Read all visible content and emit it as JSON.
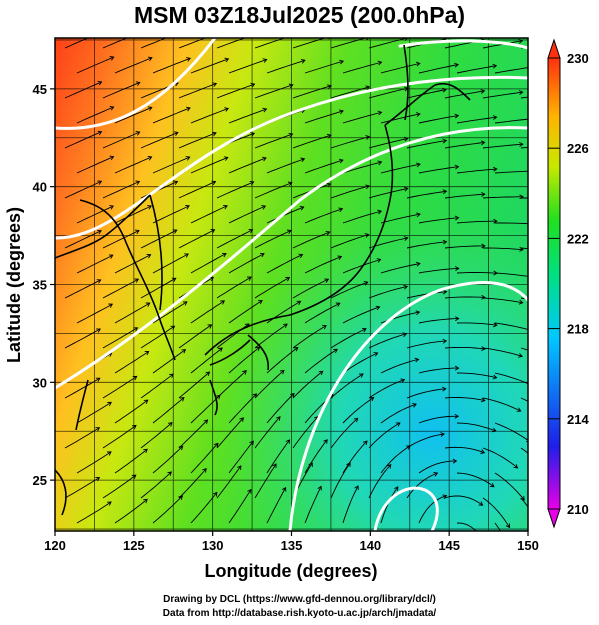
{
  "title": "MSM 03Z18Jul2025 (200.0hPa)",
  "axes": {
    "xlabel": "Longitude (degrees)",
    "ylabel": "Latitude  (degrees)",
    "xticks": [
      "120",
      "125",
      "130",
      "135",
      "140",
      "145",
      "150"
    ],
    "yticks": [
      "25",
      "30",
      "35",
      "40",
      "45"
    ],
    "xlim": [
      120,
      150
    ],
    "ylim": [
      22.4,
      47.6
    ]
  },
  "colorbar": {
    "ticks": [
      "230",
      "226",
      "222",
      "218",
      "214",
      "210"
    ],
    "range": [
      210,
      230
    ],
    "colors": [
      "#e800e8",
      "#1e1ee8",
      "#00c8ff",
      "#00e080",
      "#20e020",
      "#c8e800",
      "#ffb400",
      "#ff3010"
    ]
  },
  "credits": {
    "line1": "Drawing by DCL (https://www.gfd-dennou.org/library/dcl/)",
    "line2": "Data from http://database.rish.kyoto-u.ac.jp/arch/jmadata/"
  }
}
